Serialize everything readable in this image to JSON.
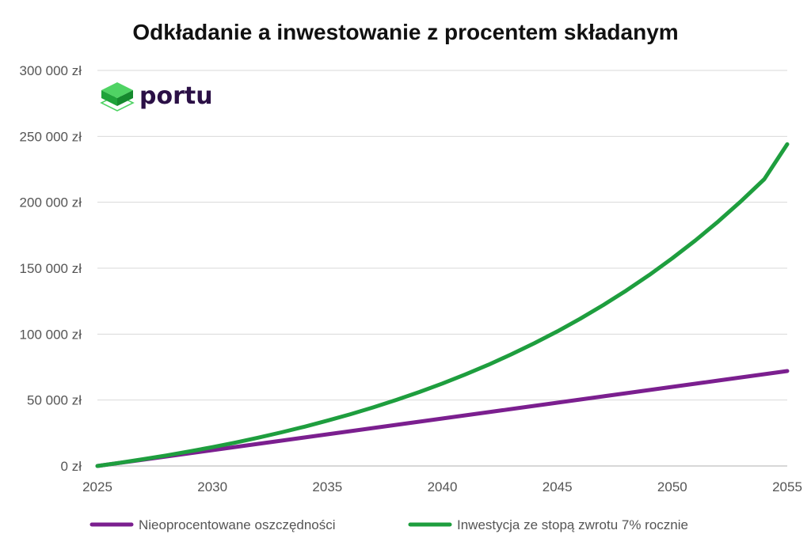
{
  "brand": {
    "name": "portu",
    "logo_icon": "stacked-cube-logo-icon",
    "text_color": "#2b1046",
    "logo_colors": {
      "top": "#4fd364",
      "front": "#1fa33a",
      "side": "#158a2e",
      "outline": "#4fd364"
    }
  },
  "chart_data": {
    "type": "line",
    "title": "Odkładanie a inwestowanie z procentem składanym",
    "xlabel": "",
    "ylabel": "",
    "xlim": [
      2025,
      2055
    ],
    "ylim": [
      0,
      300000
    ],
    "x_ticks": [
      2025,
      2030,
      2035,
      2040,
      2045,
      2050,
      2055
    ],
    "y_ticks": [
      {
        "value": 0,
        "label": "0 zł"
      },
      {
        "value": 50000,
        "label": "50 000 zł"
      },
      {
        "value": 100000,
        "label": "100 000 zł"
      },
      {
        "value": 150000,
        "label": "150 000 zł"
      },
      {
        "value": 200000,
        "label": "200 000 zł"
      },
      {
        "value": 250000,
        "label": "250 000 zł"
      },
      {
        "value": 300000,
        "label": "300 000 zł"
      }
    ],
    "grid": true,
    "legend_position": "bottom",
    "x": [
      2025,
      2026,
      2027,
      2028,
      2029,
      2030,
      2031,
      2032,
      2033,
      2034,
      2035,
      2036,
      2037,
      2038,
      2039,
      2040,
      2041,
      2042,
      2043,
      2044,
      2045,
      2046,
      2047,
      2048,
      2049,
      2050,
      2051,
      2052,
      2053,
      2054,
      2055
    ],
    "series": [
      {
        "name": "Nieoprocentowane oszczędności",
        "color": "#7b1f8f",
        "values": [
          0,
          2400,
          4800,
          7200,
          9600,
          12000,
          14400,
          16800,
          19200,
          21600,
          24000,
          26400,
          28800,
          31200,
          33600,
          36000,
          38400,
          40800,
          43200,
          45600,
          48000,
          50400,
          52800,
          55200,
          57600,
          60000,
          62400,
          64800,
          67200,
          69600,
          72000
        ]
      },
      {
        "name": "Inwestycja ze stopą zwrotu 7% rocznie",
        "color": "#1e9e3e",
        "values": [
          0,
          2480,
          5140,
          7980,
          11020,
          14280,
          17770,
          21500,
          25500,
          29780,
          34360,
          39250,
          44490,
          50100,
          56110,
          62530,
          69410,
          76760,
          84630,
          93050,
          102060,
          111700,
          122020,
          133060,
          144870,
          157500,
          171010,
          185470,
          200940,
          217490,
          244000
        ]
      }
    ]
  }
}
